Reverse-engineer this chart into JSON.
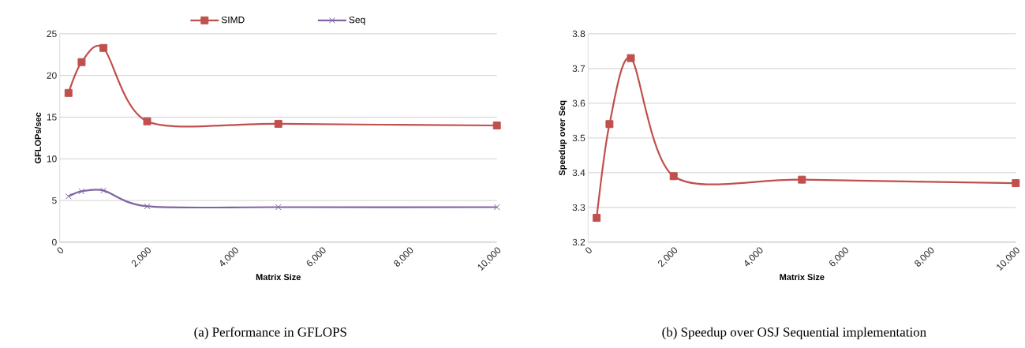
{
  "chart_data": [
    {
      "type": "line",
      "title": "(a) Performance in GFLOPS",
      "xlabel": "Matrix Size",
      "ylabel": "GFLOPs/sec",
      "x": [
        200,
        500,
        1000,
        2000,
        5000,
        10000
      ],
      "series": [
        {
          "name": "SIMD",
          "color": "#c0504d",
          "marker": "square",
          "values": [
            17.9,
            21.6,
            23.3,
            14.5,
            14.2,
            14.0
          ]
        },
        {
          "name": "Seq",
          "color": "#8064a2",
          "marker": "cross",
          "values": [
            5.5,
            6.1,
            6.2,
            4.3,
            4.2,
            4.2
          ]
        }
      ],
      "xlim": [
        0,
        10000
      ],
      "xticks": [
        0,
        {
          "value": 2000,
          "label": "2,000"
        },
        {
          "value": 4000,
          "label": "4,000"
        },
        {
          "value": 6000,
          "label": "6,000"
        },
        {
          "value": 8000,
          "label": "8,000"
        },
        {
          "value": 10000,
          "label": "10,000"
        }
      ],
      "ylim": [
        0,
        25
      ],
      "yticks": [
        0,
        5,
        10,
        15,
        20,
        25
      ],
      "grid": "y",
      "legend": "top"
    },
    {
      "type": "line",
      "title": "(b) Speedup over OSJ Sequential implementation",
      "xlabel": "Matrix Size",
      "ylabel": "Speedup over Seq",
      "x": [
        200,
        500,
        1000,
        2000,
        5000,
        10000
      ],
      "series": [
        {
          "color": "#c0504d",
          "marker": "square",
          "values": [
            3.27,
            3.54,
            3.73,
            3.39,
            3.38,
            3.37
          ]
        }
      ],
      "xlim": [
        0,
        10000
      ],
      "xticks": [
        0,
        {
          "value": 2000,
          "label": "2,000"
        },
        {
          "value": 4000,
          "label": "4,000"
        },
        {
          "value": 6000,
          "label": "6,000"
        },
        {
          "value": 8000,
          "label": "8,000"
        },
        {
          "value": 10000,
          "label": "10,000"
        }
      ],
      "ylim": [
        3.2,
        3.8
      ],
      "yticks": [
        3.2,
        3.3,
        3.4,
        3.5,
        3.6,
        3.7,
        3.8
      ],
      "grid": "y"
    }
  ]
}
